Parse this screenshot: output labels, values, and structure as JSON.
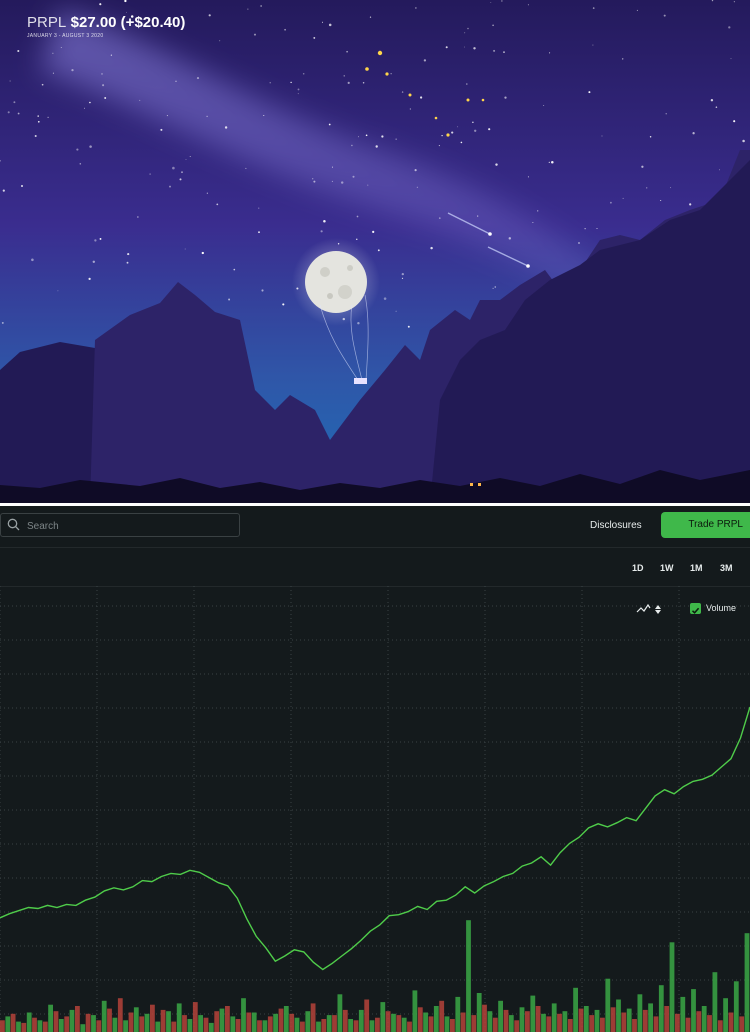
{
  "hero": {
    "symbol": "PRPL",
    "price_change": "$27.00 (+$20.40)",
    "date_range": "JANUARY 3 - AUGUST 3 2020"
  },
  "topbar": {
    "search_placeholder": "Search",
    "disclosures_label": "Disclosures",
    "trade_label": "Trade PRPL"
  },
  "range_buttons": [
    "1D",
    "1W",
    "1M",
    "3M"
  ],
  "chart_controls": {
    "linetype_icon": "line-chart-icon",
    "sort_icon": "sort-arrows-icon",
    "volume_label": "Volume",
    "volume_checked": true
  },
  "colors": {
    "accent": "#3fb84a",
    "line": "#4fcc4a",
    "volume_up": "#3aa845",
    "volume_down": "#b5433a",
    "panel_bg": "#141a1c"
  },
  "chart_data": {
    "type": "line",
    "series_line": [
      6.6,
      7.0,
      7.3,
      7.6,
      7.5,
      7.8,
      7.6,
      7.9,
      7.8,
      8.3,
      8.6,
      9.2,
      9.5,
      9.3,
      9.6,
      10.2,
      10.1,
      10.6,
      10.9,
      10.8,
      11.2,
      11.0,
      10.5,
      10.0,
      9.7,
      8.5,
      6.5,
      4.8,
      3.7,
      2.4,
      2.9,
      3.5,
      3.3,
      2.3,
      1.6,
      2.2,
      2.9,
      3.6,
      4.4,
      5.3,
      5.9,
      6.8,
      6.9,
      7.2,
      7.7,
      7.4,
      8.2,
      8.3,
      8.8,
      9.6,
      9.0,
      9.7,
      10.1,
      10.6,
      10.9,
      11.6,
      11.9,
      12.5,
      11.7,
      12.9,
      13.8,
      14.4,
      15.3,
      15.7,
      15.4,
      15.8,
      16.3,
      16.0,
      17.2,
      18.4,
      19.0,
      18.6,
      19.3,
      19.8,
      20.0,
      20.4,
      21.2,
      22.0,
      24.0,
      27.0
    ],
    "volume_up": [
      1.2,
      0.8,
      1.5,
      0.9,
      2.1,
      1.0,
      1.7,
      0.6,
      1.3,
      2.4,
      1.1,
      0.9,
      1.9,
      1.4,
      0.8,
      1.6,
      2.2,
      1.0,
      1.3,
      0.7,
      1.8,
      1.2,
      2.6,
      1.5,
      0.9,
      1.4,
      2.0,
      1.1,
      1.6,
      0.8,
      1.3,
      2.9,
      1.0,
      1.7,
      0.9,
      2.3,
      1.4,
      1.1,
      3.2,
      1.5,
      2.0,
      1.2,
      2.7,
      8.6,
      3.0,
      1.6,
      2.4,
      1.3,
      1.9,
      2.8,
      1.4,
      2.2,
      1.6,
      3.4,
      2.0,
      1.7,
      4.1,
      2.5,
      1.8,
      2.9,
      2.2,
      3.6,
      6.9,
      2.7,
      3.3,
      2.0,
      4.6,
      2.6,
      3.9,
      7.6
    ],
    "volume_down": [
      0.9,
      1.4,
      0.7,
      1.1,
      0.8,
      1.6,
      1.2,
      2.0,
      1.4,
      0.9,
      1.8,
      2.6,
      1.5,
      1.2,
      2.1,
      1.7,
      0.8,
      1.3,
      2.3,
      1.1,
      1.6,
      2.0,
      1.0,
      1.5,
      0.9,
      1.2,
      1.8,
      1.4,
      0.8,
      2.2,
      1.0,
      1.3,
      1.7,
      0.9,
      2.5,
      1.1,
      1.6,
      1.3,
      0.8,
      1.9,
      1.2,
      2.4,
      1.0,
      1.5,
      1.3,
      2.1,
      1.1,
      1.7,
      0.9,
      1.6,
      2.0,
      1.2,
      1.4,
      1.0,
      1.8,
      1.3,
      1.1,
      1.9,
      1.5,
      1.0,
      1.7,
      1.2,
      2.0,
      1.4,
      1.1,
      1.6,
      1.3,
      0.9,
      1.5,
      1.2
    ],
    "ylim": [
      0,
      30
    ],
    "grid": true,
    "legend": "none"
  }
}
